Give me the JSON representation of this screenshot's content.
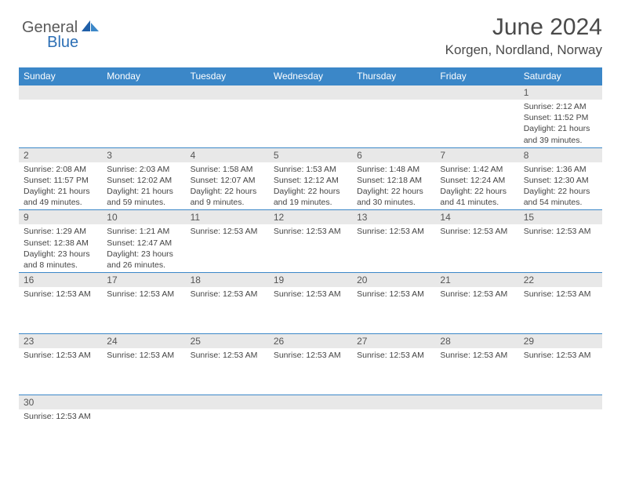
{
  "logo": {
    "part1": "General",
    "part2": "Blue"
  },
  "title": "June 2024",
  "location": "Korgen, Nordland, Norway",
  "colors": {
    "header_bg": "#3b87c8",
    "header_text": "#ffffff",
    "daynum_bg": "#e8e8e8",
    "border": "#3b87c8",
    "logo_gray": "#5a5a5a",
    "logo_blue": "#2c6fb5"
  },
  "weekdays": [
    "Sunday",
    "Monday",
    "Tuesday",
    "Wednesday",
    "Thursday",
    "Friday",
    "Saturday"
  ],
  "weeks": [
    [
      {
        "n": "",
        "lines": []
      },
      {
        "n": "",
        "lines": []
      },
      {
        "n": "",
        "lines": []
      },
      {
        "n": "",
        "lines": []
      },
      {
        "n": "",
        "lines": []
      },
      {
        "n": "",
        "lines": []
      },
      {
        "n": "1",
        "lines": [
          "Sunrise: 2:12 AM",
          "Sunset: 11:52 PM",
          "Daylight: 21 hours",
          "and 39 minutes."
        ]
      }
    ],
    [
      {
        "n": "2",
        "lines": [
          "Sunrise: 2:08 AM",
          "Sunset: 11:57 PM",
          "Daylight: 21 hours",
          "and 49 minutes."
        ]
      },
      {
        "n": "3",
        "lines": [
          "Sunrise: 2:03 AM",
          "Sunset: 12:02 AM",
          "Daylight: 21 hours",
          "and 59 minutes."
        ]
      },
      {
        "n": "4",
        "lines": [
          "Sunrise: 1:58 AM",
          "Sunset: 12:07 AM",
          "Daylight: 22 hours",
          "and 9 minutes."
        ]
      },
      {
        "n": "5",
        "lines": [
          "Sunrise: 1:53 AM",
          "Sunset: 12:12 AM",
          "Daylight: 22 hours",
          "and 19 minutes."
        ]
      },
      {
        "n": "6",
        "lines": [
          "Sunrise: 1:48 AM",
          "Sunset: 12:18 AM",
          "Daylight: 22 hours",
          "and 30 minutes."
        ]
      },
      {
        "n": "7",
        "lines": [
          "Sunrise: 1:42 AM",
          "Sunset: 12:24 AM",
          "Daylight: 22 hours",
          "and 41 minutes."
        ]
      },
      {
        "n": "8",
        "lines": [
          "Sunrise: 1:36 AM",
          "Sunset: 12:30 AM",
          "Daylight: 22 hours",
          "and 54 minutes."
        ]
      }
    ],
    [
      {
        "n": "9",
        "lines": [
          "Sunrise: 1:29 AM",
          "Sunset: 12:38 AM",
          "Daylight: 23 hours",
          "and 8 minutes."
        ]
      },
      {
        "n": "10",
        "lines": [
          "Sunrise: 1:21 AM",
          "Sunset: 12:47 AM",
          "Daylight: 23 hours",
          "and 26 minutes."
        ]
      },
      {
        "n": "11",
        "lines": [
          "Sunrise: 12:53 AM"
        ]
      },
      {
        "n": "12",
        "lines": [
          "Sunrise: 12:53 AM"
        ]
      },
      {
        "n": "13",
        "lines": [
          "Sunrise: 12:53 AM"
        ]
      },
      {
        "n": "14",
        "lines": [
          "Sunrise: 12:53 AM"
        ]
      },
      {
        "n": "15",
        "lines": [
          "Sunrise: 12:53 AM"
        ]
      }
    ],
    [
      {
        "n": "16",
        "lines": [
          "Sunrise: 12:53 AM"
        ]
      },
      {
        "n": "17",
        "lines": [
          "Sunrise: 12:53 AM"
        ]
      },
      {
        "n": "18",
        "lines": [
          "Sunrise: 12:53 AM"
        ]
      },
      {
        "n": "19",
        "lines": [
          "Sunrise: 12:53 AM"
        ]
      },
      {
        "n": "20",
        "lines": [
          "Sunrise: 12:53 AM"
        ]
      },
      {
        "n": "21",
        "lines": [
          "Sunrise: 12:53 AM"
        ]
      },
      {
        "n": "22",
        "lines": [
          "Sunrise: 12:53 AM"
        ]
      }
    ],
    [
      {
        "n": "23",
        "lines": [
          "Sunrise: 12:53 AM"
        ]
      },
      {
        "n": "24",
        "lines": [
          "Sunrise: 12:53 AM"
        ]
      },
      {
        "n": "25",
        "lines": [
          "Sunrise: 12:53 AM"
        ]
      },
      {
        "n": "26",
        "lines": [
          "Sunrise: 12:53 AM"
        ]
      },
      {
        "n": "27",
        "lines": [
          "Sunrise: 12:53 AM"
        ]
      },
      {
        "n": "28",
        "lines": [
          "Sunrise: 12:53 AM"
        ]
      },
      {
        "n": "29",
        "lines": [
          "Sunrise: 12:53 AM"
        ]
      }
    ],
    [
      {
        "n": "30",
        "lines": [
          "Sunrise: 12:53 AM"
        ]
      },
      {
        "n": "",
        "lines": []
      },
      {
        "n": "",
        "lines": []
      },
      {
        "n": "",
        "lines": []
      },
      {
        "n": "",
        "lines": []
      },
      {
        "n": "",
        "lines": []
      },
      {
        "n": "",
        "lines": []
      }
    ]
  ]
}
